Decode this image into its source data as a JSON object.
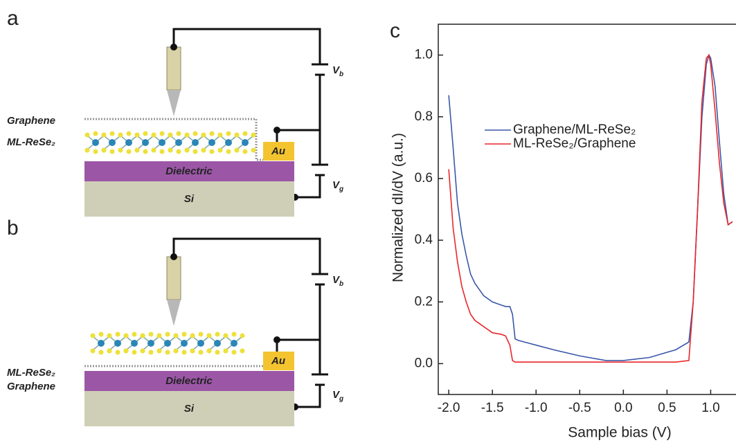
{
  "panels": [
    {
      "letter": "a",
      "top_layer": "Graphene",
      "second_layer": "ML-ReSe₂",
      "dielectric": "Dielectric",
      "substrate": "Si",
      "contact": "Au",
      "bias": "V",
      "bias_sub": "b",
      "gate": "V",
      "gate_sub": "g"
    },
    {
      "letter": "b",
      "top_layer": "ML-ReSe₂",
      "second_layer": "Graphene",
      "dielectric": "Dielectric",
      "substrate": "Si",
      "contact": "Au",
      "bias": "V",
      "bias_sub": "b",
      "gate": "V",
      "gate_sub": "g"
    }
  ],
  "chart_data": {
    "type": "line",
    "letter": "c",
    "x_label": "Sample bias (V)",
    "y_label": "Normalized dI/dV (a.u.)",
    "x": [
      -2.0,
      -1.95,
      -1.9,
      -1.85,
      -1.8,
      -1.75,
      -1.7,
      -1.6,
      -1.5,
      -1.4,
      -1.35,
      -1.3,
      -1.27,
      -1.24,
      -1.2,
      -1.0,
      -0.8,
      -0.5,
      -0.2,
      0,
      0.3,
      0.6,
      0.75,
      0.8,
      0.85,
      0.9,
      0.95,
      0.98,
      1.0,
      1.05,
      1.1,
      1.15,
      1.2,
      1.25
    ],
    "series": [
      {
        "name": "Graphene/ML-ReSe₂",
        "color": "#3a57a8",
        "values": [
          0.87,
          0.7,
          0.52,
          0.42,
          0.35,
          0.29,
          0.26,
          0.22,
          0.2,
          0.19,
          0.185,
          0.185,
          0.16,
          0.08,
          0.075,
          0.06,
          0.045,
          0.025,
          0.01,
          0.01,
          0.02,
          0.045,
          0.07,
          0.2,
          0.5,
          0.8,
          0.97,
          1.0,
          0.99,
          0.9,
          0.72,
          0.55,
          0.45,
          0.46
        ]
      },
      {
        "name": "ML-ReSe₂/Graphene",
        "color": "#e8262b",
        "values": [
          0.63,
          0.44,
          0.33,
          0.25,
          0.2,
          0.16,
          0.14,
          0.12,
          0.1,
          0.095,
          0.09,
          0.06,
          0.01,
          0.005,
          0.005,
          0.005,
          0.005,
          0.005,
          0.005,
          0.005,
          0.005,
          0.005,
          0.01,
          0.2,
          0.5,
          0.85,
          0.99,
          1.0,
          0.97,
          0.82,
          0.65,
          0.52,
          0.45,
          0.46
        ]
      }
    ],
    "xlim": [
      -2.12,
      1.29
    ],
    "ylim": [
      -0.1,
      1.1
    ],
    "xticks": [
      {
        "value": -2,
        "label": "-2.0"
      },
      {
        "value": -1.5,
        "label": "-1.5"
      },
      {
        "value": -1,
        "label": "-1.0"
      },
      {
        "value": -0.5,
        "label": "-0.5"
      },
      {
        "value": 0,
        "label": "0.0"
      },
      {
        "value": 0.5,
        "label": "0.5"
      },
      {
        "value": 1,
        "label": "1.0"
      }
    ],
    "yticks": [
      {
        "value": 0,
        "label": "0.0"
      },
      {
        "value": 0.2,
        "label": "0.2"
      },
      {
        "value": 0.4,
        "label": "0.4"
      },
      {
        "value": 0.6,
        "label": "0.6"
      },
      {
        "value": 0.8,
        "label": "0.8"
      },
      {
        "value": 1,
        "label": "1.0"
      }
    ]
  }
}
